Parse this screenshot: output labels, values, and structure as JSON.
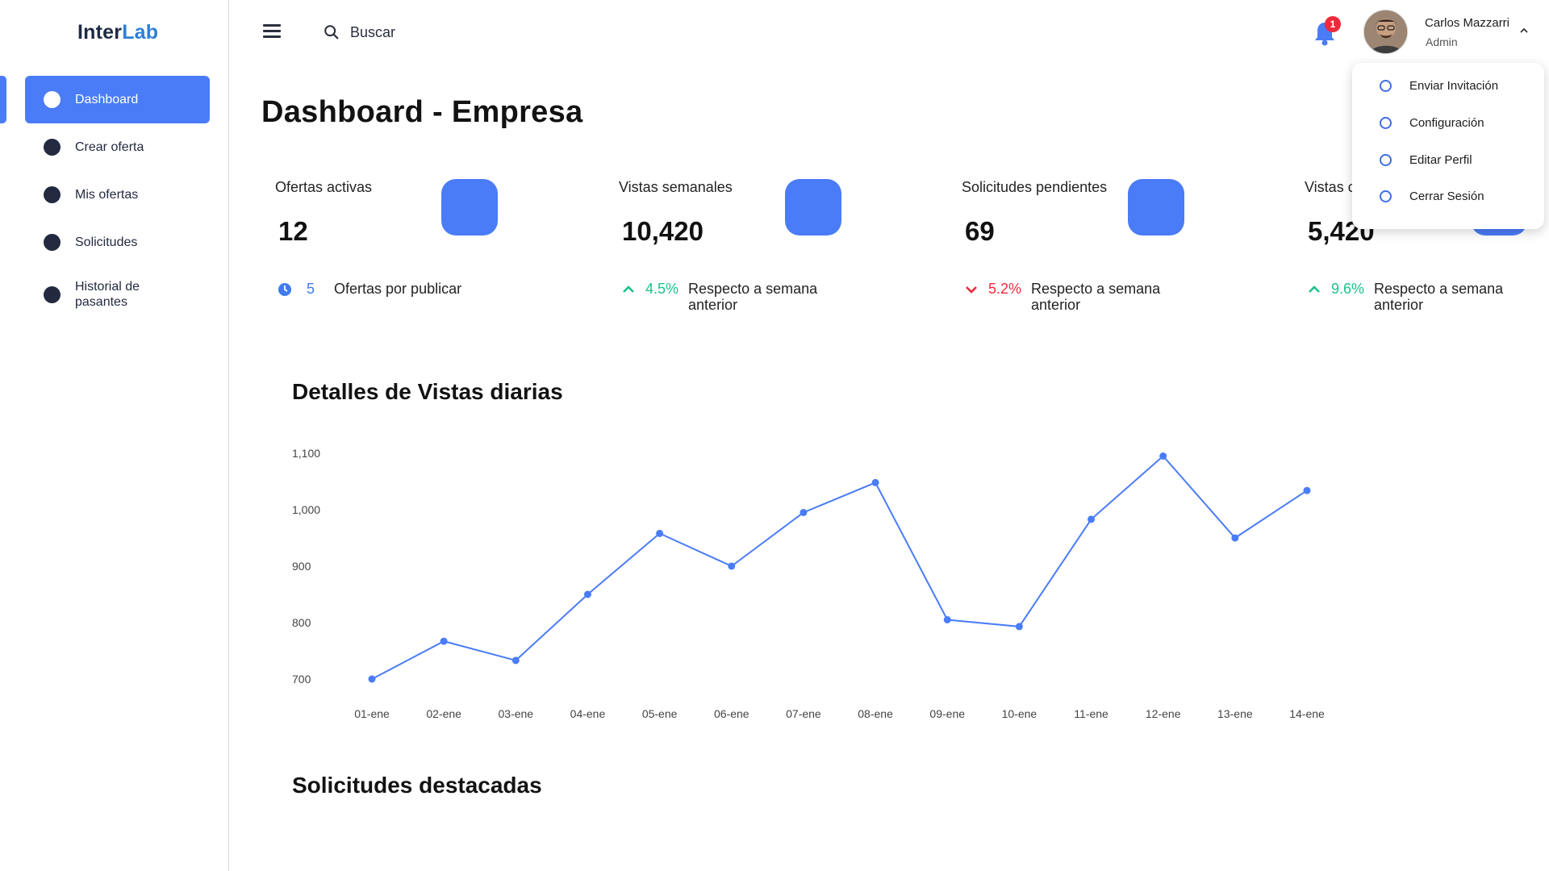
{
  "brand": {
    "part1": "Inter",
    "part2": "Lab"
  },
  "sidebar": {
    "items": [
      {
        "label": "Dashboard",
        "active": true
      },
      {
        "label": "Crear oferta",
        "active": false
      },
      {
        "label": "Mis ofertas",
        "active": false
      },
      {
        "label": "Solicitudes",
        "active": false
      },
      {
        "label": "Historial de pasantes",
        "active": false
      }
    ]
  },
  "topbar": {
    "search_placeholder": "Buscar",
    "notifications_count": "1",
    "user": {
      "name": "Carlos Mazzarri",
      "role": "Admin"
    }
  },
  "user_menu": {
    "items": [
      "Enviar Invitación",
      "Configuración",
      "Editar Perfil",
      "Cerrar Sesión"
    ]
  },
  "page": {
    "title": "Dashboard - Empresa"
  },
  "cards": [
    {
      "title": "Ofertas activas",
      "value": "12",
      "foot_value": "5",
      "foot_text": "Ofertas por publicar"
    },
    {
      "title": "Vistas semanales",
      "value": "10,420",
      "trend": "up",
      "pct": "4.5%",
      "foot_text": "Respecto a semana anterior"
    },
    {
      "title": "Solicitudes pendientes",
      "value": "69",
      "trend": "down",
      "pct": "5.2%",
      "foot_text": "Respecto a semana anterior"
    },
    {
      "title": "Vistas c",
      "value": "5,420",
      "trend": "up",
      "pct": "9.6%",
      "foot_text": "Respecto a semana anterior"
    }
  ],
  "colors": {
    "accent": "#4a7cf7",
    "up": "#1cc28a",
    "down": "#ee2a3a",
    "sidebar_text": "#232a40"
  },
  "icons": {
    "menu": "menu-icon",
    "search": "search-icon",
    "bell": "bell-icon",
    "chevron": "chevron-up-icon"
  },
  "chart_section_title": "Detalles de Vistas diarias",
  "chart_data": {
    "type": "line",
    "categories": [
      "01-ene",
      "02-ene",
      "03-ene",
      "04-ene",
      "05-ene",
      "06-ene",
      "07-ene",
      "08-ene",
      "09-ene",
      "10-ene",
      "11-ene",
      "12-ene",
      "13-ene",
      "14-ene"
    ],
    "values": [
      700,
      767,
      733,
      850,
      958,
      900,
      995,
      1048,
      805,
      793,
      983,
      1095,
      950,
      1034
    ],
    "yticks": [
      "1,100",
      "1,000",
      "900",
      "800",
      "700"
    ],
    "ylim": [
      700,
      1100
    ],
    "grid": false,
    "color": "#4a7cf7"
  },
  "section2_title": "Solicitudes destacadas"
}
